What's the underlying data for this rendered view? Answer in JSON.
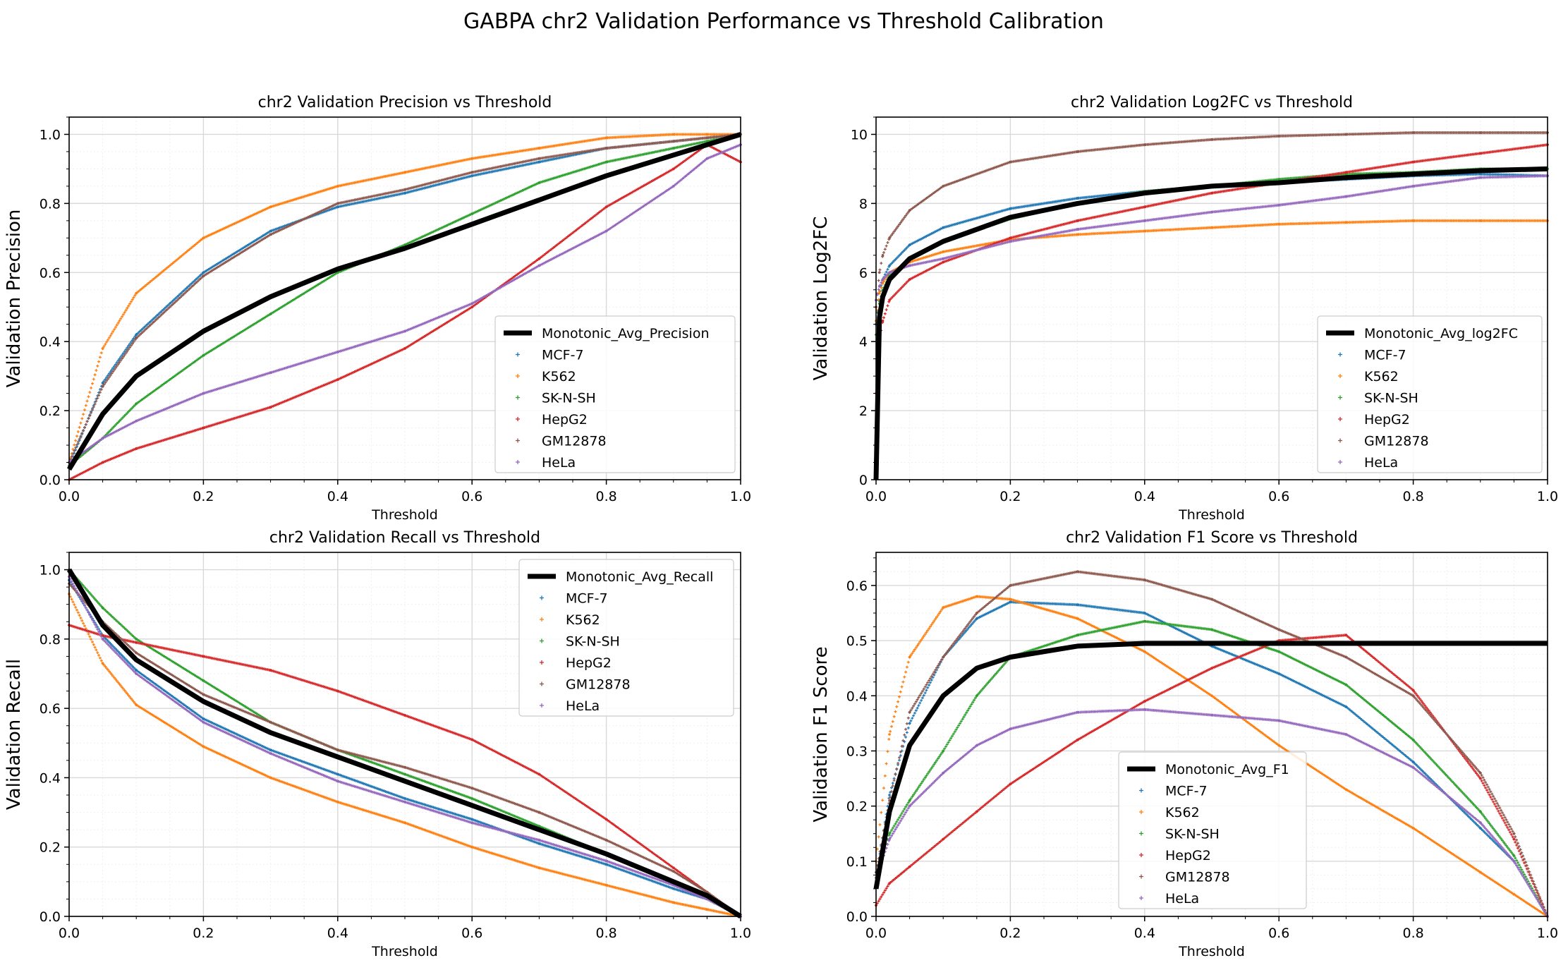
{
  "figure": {
    "suptitle": "GABPA chr2 Validation Performance vs Threshold Calibration"
  },
  "colors": {
    "MCF-7": "#1f77b4",
    "K562": "#ff7f0e",
    "SK-N-SH": "#2ca02c",
    "HepG2": "#d62728",
    "GM12878": "#8c564b",
    "HeLa": "#9467bd",
    "Monotonic_Avg": "#000000"
  },
  "chart_data": [
    {
      "id": "precision",
      "type": "scatter",
      "title": "chr2 Validation Precision vs Threshold",
      "xlabel": "Threshold",
      "ylabel": "Validation Precision",
      "xlim": [
        0,
        1
      ],
      "ylim": [
        0,
        1.05
      ],
      "xticks": [
        "0.0",
        "0.2",
        "0.4",
        "0.6",
        "0.8",
        "1.0"
      ],
      "yticks": [
        "0.0",
        "0.2",
        "0.4",
        "0.6",
        "0.8",
        "1.0"
      ],
      "grid": true,
      "legend_position": "lower-right",
      "x": [
        0.0,
        0.05,
        0.1,
        0.2,
        0.3,
        0.4,
        0.5,
        0.6,
        0.7,
        0.8,
        0.9,
        0.95,
        1.0
      ],
      "series": [
        {
          "name": "Monotonic_Avg_Precision",
          "style": "line",
          "color": "#000000",
          "values": [
            0.03,
            0.19,
            0.3,
            0.43,
            0.53,
            0.61,
            0.67,
            0.74,
            0.81,
            0.88,
            0.94,
            0.97,
            1.0
          ]
        },
        {
          "name": "MCF-7",
          "style": "points",
          "color": "#1f77b4",
          "values": [
            0.04,
            0.28,
            0.42,
            0.6,
            0.72,
            0.79,
            0.83,
            0.88,
            0.92,
            0.96,
            0.98,
            0.99,
            1.0
          ]
        },
        {
          "name": "K562",
          "style": "points",
          "color": "#ff7f0e",
          "values": [
            0.05,
            0.38,
            0.54,
            0.7,
            0.79,
            0.85,
            0.89,
            0.93,
            0.96,
            0.99,
            1.0,
            1.0,
            1.0
          ]
        },
        {
          "name": "SK-N-SH",
          "style": "points",
          "color": "#2ca02c",
          "values": [
            0.04,
            0.12,
            0.22,
            0.36,
            0.48,
            0.6,
            0.68,
            0.77,
            0.86,
            0.92,
            0.96,
            0.98,
            1.0
          ]
        },
        {
          "name": "HepG2",
          "style": "points",
          "color": "#d62728",
          "values": [
            0.0,
            0.05,
            0.09,
            0.15,
            0.21,
            0.29,
            0.38,
            0.5,
            0.64,
            0.79,
            0.9,
            0.97,
            0.92
          ]
        },
        {
          "name": "GM12878",
          "style": "points",
          "color": "#8c564b",
          "values": [
            0.05,
            0.27,
            0.41,
            0.59,
            0.71,
            0.8,
            0.84,
            0.89,
            0.93,
            0.96,
            0.98,
            0.99,
            1.0
          ]
        },
        {
          "name": "HeLa",
          "style": "points",
          "color": "#9467bd",
          "values": [
            0.05,
            0.12,
            0.17,
            0.25,
            0.31,
            0.37,
            0.43,
            0.51,
            0.62,
            0.72,
            0.85,
            0.93,
            0.97
          ]
        }
      ]
    },
    {
      "id": "log2fc",
      "type": "scatter",
      "title": "chr2 Validation Log2FC vs Threshold",
      "xlabel": "Threshold",
      "ylabel": "Validation Log2FC",
      "xlim": [
        0,
        1
      ],
      "ylim": [
        0,
        10.5
      ],
      "xticks": [
        "0.0",
        "0.2",
        "0.4",
        "0.6",
        "0.8",
        "1.0"
      ],
      "yticks": [
        "0",
        "2",
        "4",
        "6",
        "8",
        "10"
      ],
      "grid": true,
      "legend_position": "lower-right",
      "x": [
        0.0,
        0.005,
        0.01,
        0.02,
        0.05,
        0.1,
        0.2,
        0.3,
        0.4,
        0.5,
        0.6,
        0.7,
        0.8,
        0.9,
        1.0
      ],
      "series": [
        {
          "name": "Monotonic_Avg_log2FC",
          "style": "line",
          "color": "#000000",
          "values": [
            0.0,
            4.7,
            5.3,
            5.8,
            6.4,
            6.9,
            7.6,
            8.0,
            8.3,
            8.5,
            8.6,
            8.75,
            8.85,
            8.95,
            9.0
          ]
        },
        {
          "name": "MCF-7",
          "style": "points",
          "color": "#1f77b4",
          "values": [
            4.5,
            5.4,
            5.8,
            6.2,
            6.8,
            7.3,
            7.85,
            8.15,
            8.35,
            8.5,
            8.6,
            8.7,
            8.8,
            8.85,
            8.8
          ]
        },
        {
          "name": "K562",
          "style": "points",
          "color": "#ff7f0e",
          "values": [
            4.6,
            5.4,
            5.7,
            6.0,
            6.3,
            6.6,
            6.95,
            7.1,
            7.2,
            7.3,
            7.4,
            7.45,
            7.5,
            7.5,
            7.5
          ]
        },
        {
          "name": "SK-N-SH",
          "style": "points",
          "color": "#2ca02c",
          "values": [
            4.2,
            5.1,
            5.5,
            5.9,
            6.4,
            6.9,
            7.55,
            8.0,
            8.35,
            8.5,
            8.7,
            8.85,
            8.9,
            9.0,
            9.0
          ]
        },
        {
          "name": "HepG2",
          "style": "points",
          "color": "#d62728",
          "values": [
            2.5,
            4.0,
            4.6,
            5.2,
            5.8,
            6.3,
            7.0,
            7.5,
            7.9,
            8.3,
            8.6,
            8.9,
            9.2,
            9.45,
            9.7
          ]
        },
        {
          "name": "GM12878",
          "style": "points",
          "color": "#8c564b",
          "values": [
            5.0,
            6.0,
            6.5,
            7.0,
            7.8,
            8.5,
            9.2,
            9.5,
            9.7,
            9.85,
            9.95,
            10.0,
            10.05,
            10.05,
            10.05
          ]
        },
        {
          "name": "HeLa",
          "style": "points",
          "color": "#9467bd",
          "values": [
            5.2,
            5.6,
            5.8,
            6.0,
            6.2,
            6.4,
            6.9,
            7.25,
            7.5,
            7.75,
            7.95,
            8.2,
            8.5,
            8.75,
            8.8
          ]
        }
      ]
    },
    {
      "id": "recall",
      "type": "scatter",
      "title": "chr2 Validation Recall vs Threshold",
      "xlabel": "Threshold",
      "ylabel": "Validation Recall",
      "xlim": [
        0,
        1
      ],
      "ylim": [
        0,
        1.05
      ],
      "xticks": [
        "0.0",
        "0.2",
        "0.4",
        "0.6",
        "0.8",
        "1.0"
      ],
      "yticks": [
        "0.0",
        "0.2",
        "0.4",
        "0.6",
        "0.8",
        "1.0"
      ],
      "grid": true,
      "legend_position": "upper-right",
      "x": [
        0.0,
        0.05,
        0.1,
        0.2,
        0.3,
        0.4,
        0.5,
        0.6,
        0.7,
        0.8,
        0.9,
        0.95,
        1.0
      ],
      "series": [
        {
          "name": "Monotonic_Avg_Recall",
          "style": "line",
          "color": "#000000",
          "values": [
            1.0,
            0.84,
            0.74,
            0.62,
            0.53,
            0.46,
            0.39,
            0.32,
            0.25,
            0.18,
            0.1,
            0.06,
            0.0
          ]
        },
        {
          "name": "MCF-7",
          "style": "points",
          "color": "#1f77b4",
          "values": [
            0.97,
            0.81,
            0.71,
            0.57,
            0.48,
            0.41,
            0.34,
            0.28,
            0.21,
            0.15,
            0.08,
            0.05,
            0.0
          ]
        },
        {
          "name": "K562",
          "style": "points",
          "color": "#ff7f0e",
          "values": [
            0.93,
            0.73,
            0.61,
            0.49,
            0.4,
            0.33,
            0.27,
            0.2,
            0.14,
            0.09,
            0.04,
            0.02,
            0.0
          ]
        },
        {
          "name": "SK-N-SH",
          "style": "points",
          "color": "#2ca02c",
          "values": [
            1.0,
            0.89,
            0.8,
            0.68,
            0.56,
            0.48,
            0.41,
            0.34,
            0.26,
            0.18,
            0.1,
            0.05,
            0.0
          ]
        },
        {
          "name": "HepG2",
          "style": "points",
          "color": "#d62728",
          "values": [
            0.84,
            0.81,
            0.79,
            0.75,
            0.71,
            0.65,
            0.58,
            0.51,
            0.41,
            0.28,
            0.14,
            0.07,
            0.0
          ]
        },
        {
          "name": "GM12878",
          "style": "points",
          "color": "#8c564b",
          "values": [
            0.96,
            0.85,
            0.76,
            0.64,
            0.56,
            0.48,
            0.43,
            0.37,
            0.3,
            0.22,
            0.13,
            0.07,
            0.0
          ]
        },
        {
          "name": "HeLa",
          "style": "points",
          "color": "#9467bd",
          "values": [
            0.98,
            0.8,
            0.7,
            0.56,
            0.47,
            0.39,
            0.33,
            0.27,
            0.22,
            0.16,
            0.09,
            0.05,
            0.0
          ]
        }
      ]
    },
    {
      "id": "f1",
      "type": "scatter",
      "title": "chr2 Validation F1 Score vs Threshold",
      "xlabel": "Threshold",
      "ylabel": "Validation F1 Score",
      "xlim": [
        0,
        1
      ],
      "ylim": [
        0,
        0.66
      ],
      "xticks": [
        "0.0",
        "0.2",
        "0.4",
        "0.6",
        "0.8",
        "1.0"
      ],
      "yticks": [
        "0.0",
        "0.1",
        "0.2",
        "0.3",
        "0.4",
        "0.5",
        "0.6"
      ],
      "grid": true,
      "legend_position": "lower-center",
      "x": [
        0.0,
        0.02,
        0.05,
        0.1,
        0.15,
        0.2,
        0.3,
        0.4,
        0.5,
        0.6,
        0.7,
        0.8,
        0.9,
        0.95,
        1.0
      ],
      "series": [
        {
          "name": "Monotonic_Avg_F1",
          "style": "line",
          "color": "#000000",
          "values": [
            0.05,
            0.19,
            0.31,
            0.4,
            0.45,
            0.47,
            0.49,
            0.495,
            0.495,
            0.495,
            0.495,
            0.495,
            0.495,
            0.495,
            0.495
          ]
        },
        {
          "name": "MCF-7",
          "style": "points",
          "color": "#1f77b4",
          "values": [
            0.07,
            0.22,
            0.35,
            0.47,
            0.54,
            0.57,
            0.565,
            0.55,
            0.49,
            0.44,
            0.38,
            0.28,
            0.16,
            0.1,
            0.0
          ]
        },
        {
          "name": "K562",
          "style": "points",
          "color": "#ff7f0e",
          "values": [
            0.1,
            0.33,
            0.47,
            0.56,
            0.58,
            0.575,
            0.54,
            0.48,
            0.4,
            0.31,
            0.23,
            0.16,
            0.08,
            0.04,
            0.0
          ]
        },
        {
          "name": "SK-N-SH",
          "style": "points",
          "color": "#2ca02c",
          "values": [
            0.07,
            0.15,
            0.21,
            0.3,
            0.4,
            0.47,
            0.51,
            0.535,
            0.52,
            0.48,
            0.42,
            0.32,
            0.19,
            0.11,
            0.0
          ]
        },
        {
          "name": "HepG2",
          "style": "points",
          "color": "#d62728",
          "values": [
            0.02,
            0.06,
            0.09,
            0.14,
            0.19,
            0.24,
            0.32,
            0.39,
            0.45,
            0.5,
            0.51,
            0.41,
            0.25,
            0.14,
            0.0
          ]
        },
        {
          "name": "GM12878",
          "style": "points",
          "color": "#8c564b",
          "values": [
            0.08,
            0.21,
            0.37,
            0.47,
            0.55,
            0.6,
            0.625,
            0.61,
            0.575,
            0.52,
            0.47,
            0.4,
            0.26,
            0.15,
            0.0
          ]
        },
        {
          "name": "HeLa",
          "style": "points",
          "color": "#9467bd",
          "values": [
            0.07,
            0.14,
            0.2,
            0.26,
            0.31,
            0.34,
            0.37,
            0.375,
            0.365,
            0.355,
            0.33,
            0.27,
            0.17,
            0.1,
            0.0
          ]
        }
      ]
    }
  ]
}
